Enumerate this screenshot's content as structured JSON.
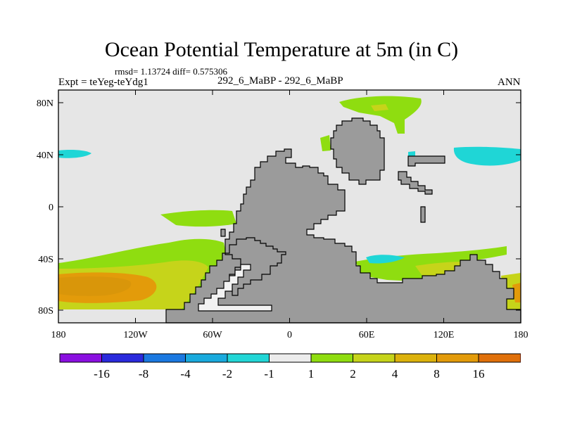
{
  "title": "Ocean Potential Temperature at 5m (in C)",
  "stats": "rmsd= 1.13724 diff= 0.575306",
  "experiment": "Expt = teYeg-teYdg1",
  "subtitle": "292_6_MaBP - 292_6_MaBP",
  "season": "ANN",
  "colors": {
    "ocean_neutral": "#e6e6e6",
    "land": "#9b9b9b",
    "cyan": "#1fd6d6",
    "green": "#8fdd10",
    "yellow_green": "#c6d41a",
    "orange": "#e39b0a",
    "orange_light": "#d9b514"
  },
  "map_data": {
    "projection": "cylindrical equidistant",
    "lon_range": [
      -180,
      180
    ],
    "lat_range": [
      -90,
      90
    ],
    "x_ticks": [
      {
        "value": -180,
        "label": "180"
      },
      {
        "value": -120,
        "label": "120W"
      },
      {
        "value": -60,
        "label": "60W"
      },
      {
        "value": 0,
        "label": "0"
      },
      {
        "value": 60,
        "label": "60E"
      },
      {
        "value": 120,
        "label": "120E"
      },
      {
        "value": 180,
        "label": "180"
      }
    ],
    "y_ticks": [
      {
        "value": 80,
        "label": "80N"
      },
      {
        "value": 40,
        "label": "40N"
      },
      {
        "value": 0,
        "label": "0"
      },
      {
        "value": -40,
        "label": "40S"
      },
      {
        "value": -80,
        "label": "80S"
      }
    ]
  },
  "colorbar": {
    "colors": [
      "#8a0fe0",
      "#2a2adc",
      "#1a78e0",
      "#19aadd",
      "#22d6d6",
      "#ececec",
      "#8fdd10",
      "#c6d41a",
      "#dcb20c",
      "#e39b0a",
      "#e0700a",
      "#d84010"
    ],
    "labels": [
      "-16",
      "-8",
      "-4",
      "-2",
      "-1",
      "1",
      "2",
      "4",
      "8",
      "16"
    ]
  }
}
